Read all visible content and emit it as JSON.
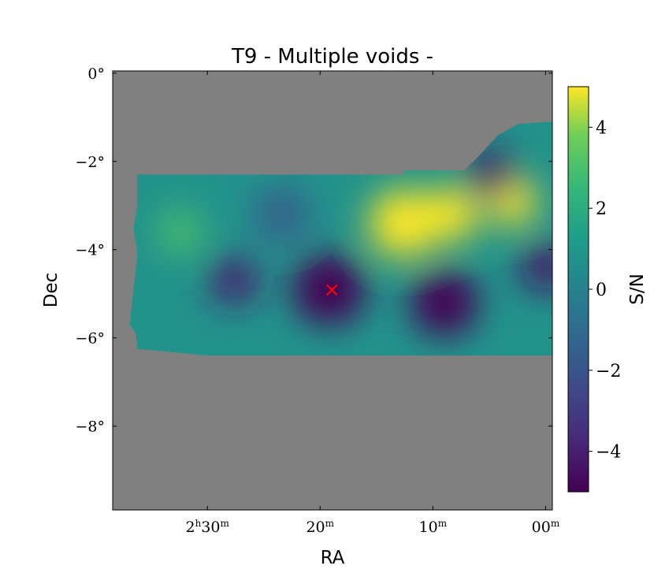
{
  "chart_data": {
    "type": "heatmap",
    "title": "T9 - Multiple voids -",
    "xlabel": "RA",
    "ylabel": "Dec",
    "colorbar_label": "S/N",
    "x_tick_labels": [
      {
        "value": 2.5,
        "label_h": "2",
        "label_m": "30"
      },
      {
        "value": 2.33333,
        "label_h": "",
        "label_m": "20"
      },
      {
        "value": 2.16667,
        "label_h": "",
        "label_m": "10"
      },
      {
        "value": 2.0,
        "label_h": "",
        "label_m": "00"
      }
    ],
    "xlim_hours": [
      2.64,
      1.99
    ],
    "y_ticks": [
      {
        "value": 0,
        "label": "0°"
      },
      {
        "value": -2,
        "label": "−2°"
      },
      {
        "value": -4,
        "label": "−4°"
      },
      {
        "value": -6,
        "label": "−6°"
      },
      {
        "value": -8,
        "label": "−8°"
      }
    ],
    "ylim_deg": [
      -9.9,
      0.05
    ],
    "colorbar": {
      "range": [
        -5,
        5
      ],
      "colormap": "viridis",
      "ticks": [
        {
          "value": 4,
          "label": "4"
        },
        {
          "value": 2,
          "label": "2"
        },
        {
          "value": 0,
          "label": "0"
        },
        {
          "value": -2,
          "label": "−2"
        },
        {
          "value": -4,
          "label": "−4"
        }
      ]
    },
    "background_color": "#808080",
    "footprint_ra_hours": [
      1.99,
      2.615
    ],
    "footprint_dec_deg": [
      -6.4,
      -1.1
    ],
    "marker": {
      "ra_hours": 2.316,
      "dec_deg": -4.9,
      "symbol": "×",
      "color": "#ff0000"
    },
    "sn_features": [
      {
        "ra": 2.05,
        "dec": -2.9,
        "sn": 5.5,
        "spread": 0.5
      },
      {
        "ra": 2.14,
        "dec": -3.2,
        "sn": 5.5,
        "spread": 0.55
      },
      {
        "ra": 2.21,
        "dec": -3.4,
        "sn": 5.0,
        "spread": 0.7
      },
      {
        "ra": 2.32,
        "dec": -4.9,
        "sn": -5.5,
        "spread": 0.75
      },
      {
        "ra": 2.15,
        "dec": -5.2,
        "sn": -5.0,
        "spread": 0.7
      },
      {
        "ra": 2.08,
        "dec": -2.3,
        "sn": -4.5,
        "spread": 0.5
      },
      {
        "ra": 2.46,
        "dec": -4.7,
        "sn": -4.0,
        "spread": 0.5
      },
      {
        "ra": 2.0,
        "dec": -4.4,
        "sn": -4.5,
        "spread": 0.5
      },
      {
        "ra": 2.54,
        "dec": -3.6,
        "sn": 3.0,
        "spread": 0.45
      },
      {
        "ra": 2.39,
        "dec": -3.2,
        "sn": -1.5,
        "spread": 0.6
      }
    ]
  }
}
